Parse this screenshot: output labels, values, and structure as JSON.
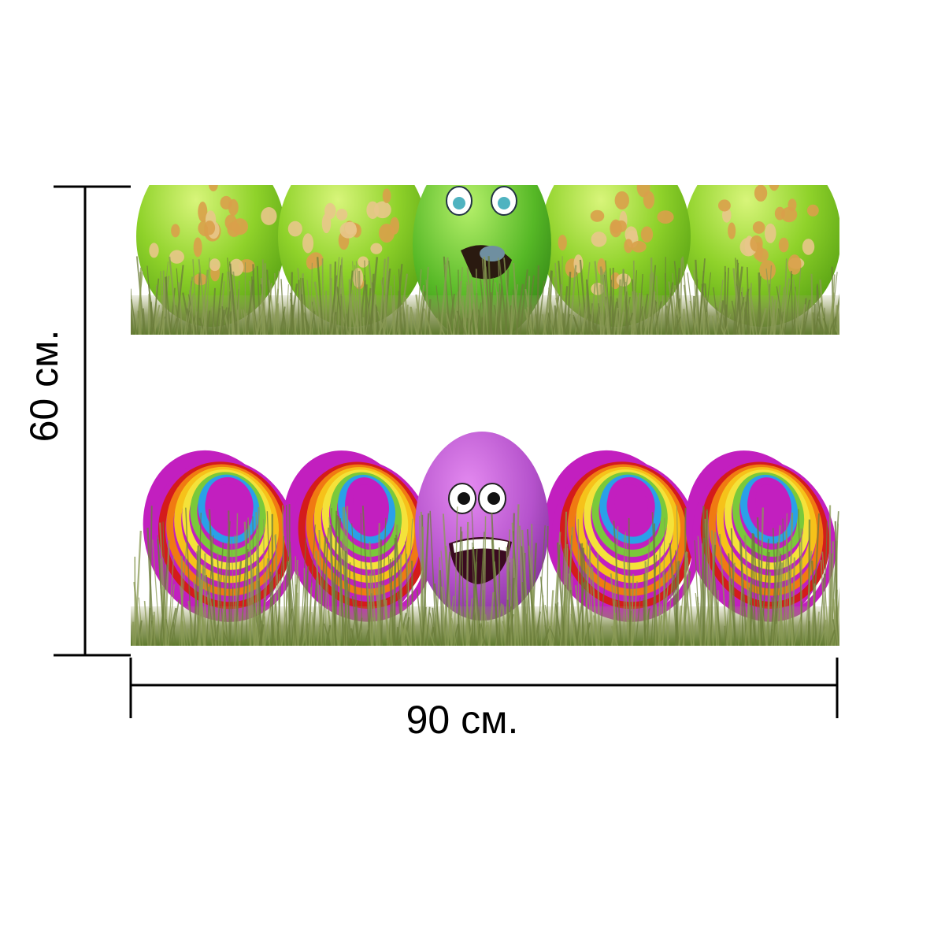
{
  "dimensions": {
    "height": "60 см.",
    "width": "90 см."
  }
}
